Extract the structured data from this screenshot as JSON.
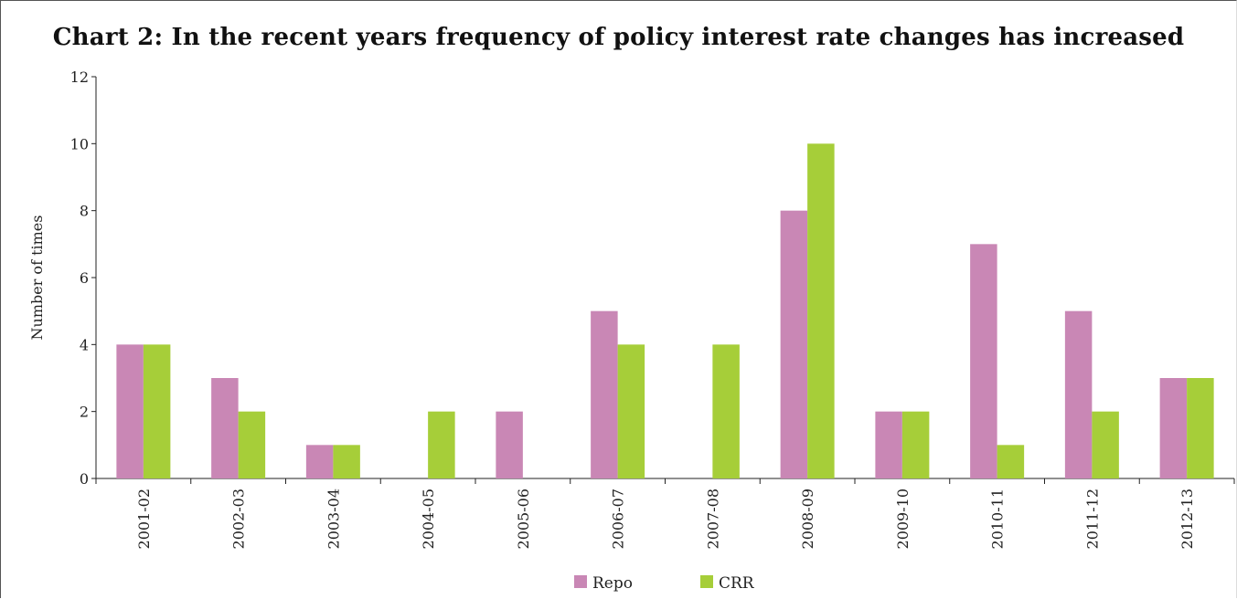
{
  "chart_data": {
    "type": "bar",
    "title": "Chart 2: In the recent years frequency of policy interest rate changes has increased",
    "xlabel": "",
    "ylabel": "Number of times",
    "ylim": [
      0,
      12
    ],
    "yticks": [
      0,
      2,
      4,
      6,
      8,
      10,
      12
    ],
    "categories": [
      "2001-02",
      "2002-03",
      "2003-04",
      "2004-05",
      "2005-06",
      "2006-07",
      "2007-08",
      "2008-09",
      "2009-10",
      "2010-11",
      "2011-12",
      "2012-13"
    ],
    "series": [
      {
        "name": "Repo",
        "color": "#c987b5",
        "values": [
          4,
          3,
          1,
          0,
          2,
          5,
          0,
          8,
          2,
          7,
          5,
          3
        ]
      },
      {
        "name": "CRR",
        "color": "#a6ce39",
        "values": [
          4,
          2,
          1,
          2,
          0,
          4,
          4,
          10,
          2,
          1,
          2,
          3
        ]
      }
    ],
    "grid": false,
    "legend_position": "bottom"
  }
}
